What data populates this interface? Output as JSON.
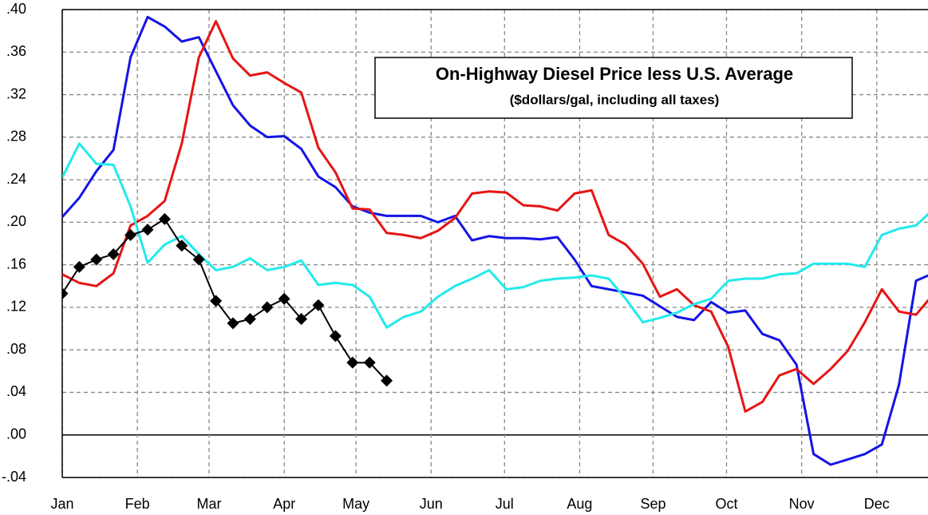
{
  "chart_data": {
    "type": "line",
    "title": "On-Highway Diesel Price  less U.S. Average",
    "subtitle": "($dollars/gal, including all taxes)",
    "x": [
      1,
      2,
      3,
      4,
      5,
      6,
      7,
      8,
      9,
      10,
      11,
      12,
      13,
      14,
      15,
      16,
      17,
      18,
      19,
      20,
      21,
      22,
      23,
      24,
      25,
      26,
      27,
      28,
      29,
      30,
      31,
      32,
      33,
      34,
      35,
      36,
      37,
      38,
      39,
      40,
      41,
      42,
      43,
      44,
      45,
      46,
      47,
      48,
      49,
      50,
      51,
      52
    ],
    "xlim": [
      1,
      51.7
    ],
    "xticks": [
      {
        "value": 1,
        "label": "Jan"
      },
      {
        "value": 5.4,
        "label": "Feb"
      },
      {
        "value": 9.6,
        "label": "Mar"
      },
      {
        "value": 14.0,
        "label": "Apr"
      },
      {
        "value": 18.2,
        "label": "May"
      },
      {
        "value": 22.6,
        "label": "Jun"
      },
      {
        "value": 26.9,
        "label": "Jul"
      },
      {
        "value": 31.3,
        "label": "Aug"
      },
      {
        "value": 35.6,
        "label": "Sep"
      },
      {
        "value": 39.9,
        "label": "Oct"
      },
      {
        "value": 44.3,
        "label": "Nov"
      },
      {
        "value": 48.7,
        "label": "Dec"
      }
    ],
    "ylim": [
      -0.04,
      0.4
    ],
    "yticks": [
      {
        "value": -0.04,
        "label": "-.04"
      },
      {
        "value": 0,
        "label": ".00"
      },
      {
        "value": 0.04,
        "label": ".04"
      },
      {
        "value": 0.08,
        "label": ".08"
      },
      {
        "value": 0.12,
        "label": ".12"
      },
      {
        "value": 0.16,
        "label": ".16"
      },
      {
        "value": 0.2,
        "label": ".20"
      },
      {
        "value": 0.24,
        "label": ".24"
      },
      {
        "value": 0.28,
        "label": ".28"
      },
      {
        "value": 0.32,
        "label": ".32"
      },
      {
        "value": 0.36,
        "label": ".36"
      },
      {
        "value": 0.4,
        "label": ".40"
      }
    ],
    "grid": true,
    "series": [
      {
        "color": "#1414e6",
        "values": [
          0.205,
          0.223,
          0.248,
          0.268,
          0.355,
          0.393,
          0.384,
          0.37,
          0.374,
          0.342,
          0.31,
          0.291,
          0.28,
          0.281,
          0.269,
          0.243,
          0.233,
          0.215,
          0.209,
          0.206,
          0.206,
          0.206,
          0.2,
          0.206,
          0.183,
          0.187,
          0.185,
          0.185,
          0.184,
          0.186,
          0.165,
          0.14,
          0.137,
          0.134,
          0.131,
          0.121,
          0.111,
          0.108,
          0.125,
          0.115,
          0.117,
          0.095,
          0.089,
          0.066,
          -0.018,
          -0.028,
          -0.023,
          -0.018,
          -0.009,
          0.047,
          0.145,
          0.152
        ]
      },
      {
        "color": "#e61414",
        "values": [
          0.151,
          0.143,
          0.14,
          0.152,
          0.197,
          0.206,
          0.22,
          0.274,
          0.355,
          0.389,
          0.354,
          0.338,
          0.341,
          0.331,
          0.322,
          0.27,
          0.247,
          0.213,
          0.212,
          0.19,
          0.188,
          0.185,
          0.192,
          0.204,
          0.227,
          0.229,
          0.228,
          0.216,
          0.215,
          0.211,
          0.227,
          0.23,
          0.188,
          0.179,
          0.161,
          0.13,
          0.137,
          0.122,
          0.116,
          0.083,
          0.022,
          0.031,
          0.056,
          0.062,
          0.048,
          0.062,
          0.079,
          0.106,
          0.137,
          0.116,
          0.113,
          0.132
        ]
      },
      {
        "color": "#22eaea",
        "values": [
          0.242,
          0.274,
          0.255,
          0.254,
          0.215,
          0.162,
          0.179,
          0.187,
          0.17,
          0.155,
          0.158,
          0.166,
          0.155,
          0.158,
          0.164,
          0.141,
          0.143,
          0.141,
          0.13,
          0.101,
          0.111,
          0.116,
          0.13,
          0.14,
          0.147,
          0.155,
          0.137,
          0.139,
          0.145,
          0.147,
          0.148,
          0.15,
          0.147,
          0.128,
          0.106,
          0.11,
          0.115,
          0.123,
          0.128,
          0.145,
          0.147,
          0.147,
          0.151,
          0.152,
          0.161,
          0.161,
          0.161,
          0.158,
          0.188,
          0.194,
          0.197,
          0.212
        ]
      },
      {
        "color": "#000000",
        "marker": "diamond",
        "values": [
          0.133,
          0.158,
          0.165,
          0.17,
          0.188,
          0.193,
          0.203,
          0.178,
          0.165,
          0.126,
          0.105,
          0.109,
          0.12,
          0.128,
          0.109,
          0.122,
          0.093,
          0.068,
          0.068,
          0.051,
          null,
          null,
          null,
          null,
          null,
          null,
          null,
          null,
          null,
          null,
          null,
          null,
          null,
          null,
          null,
          null,
          null,
          null,
          null,
          null,
          null,
          null,
          null,
          null,
          null,
          null,
          null,
          null,
          null,
          null,
          null,
          null
        ]
      }
    ]
  }
}
